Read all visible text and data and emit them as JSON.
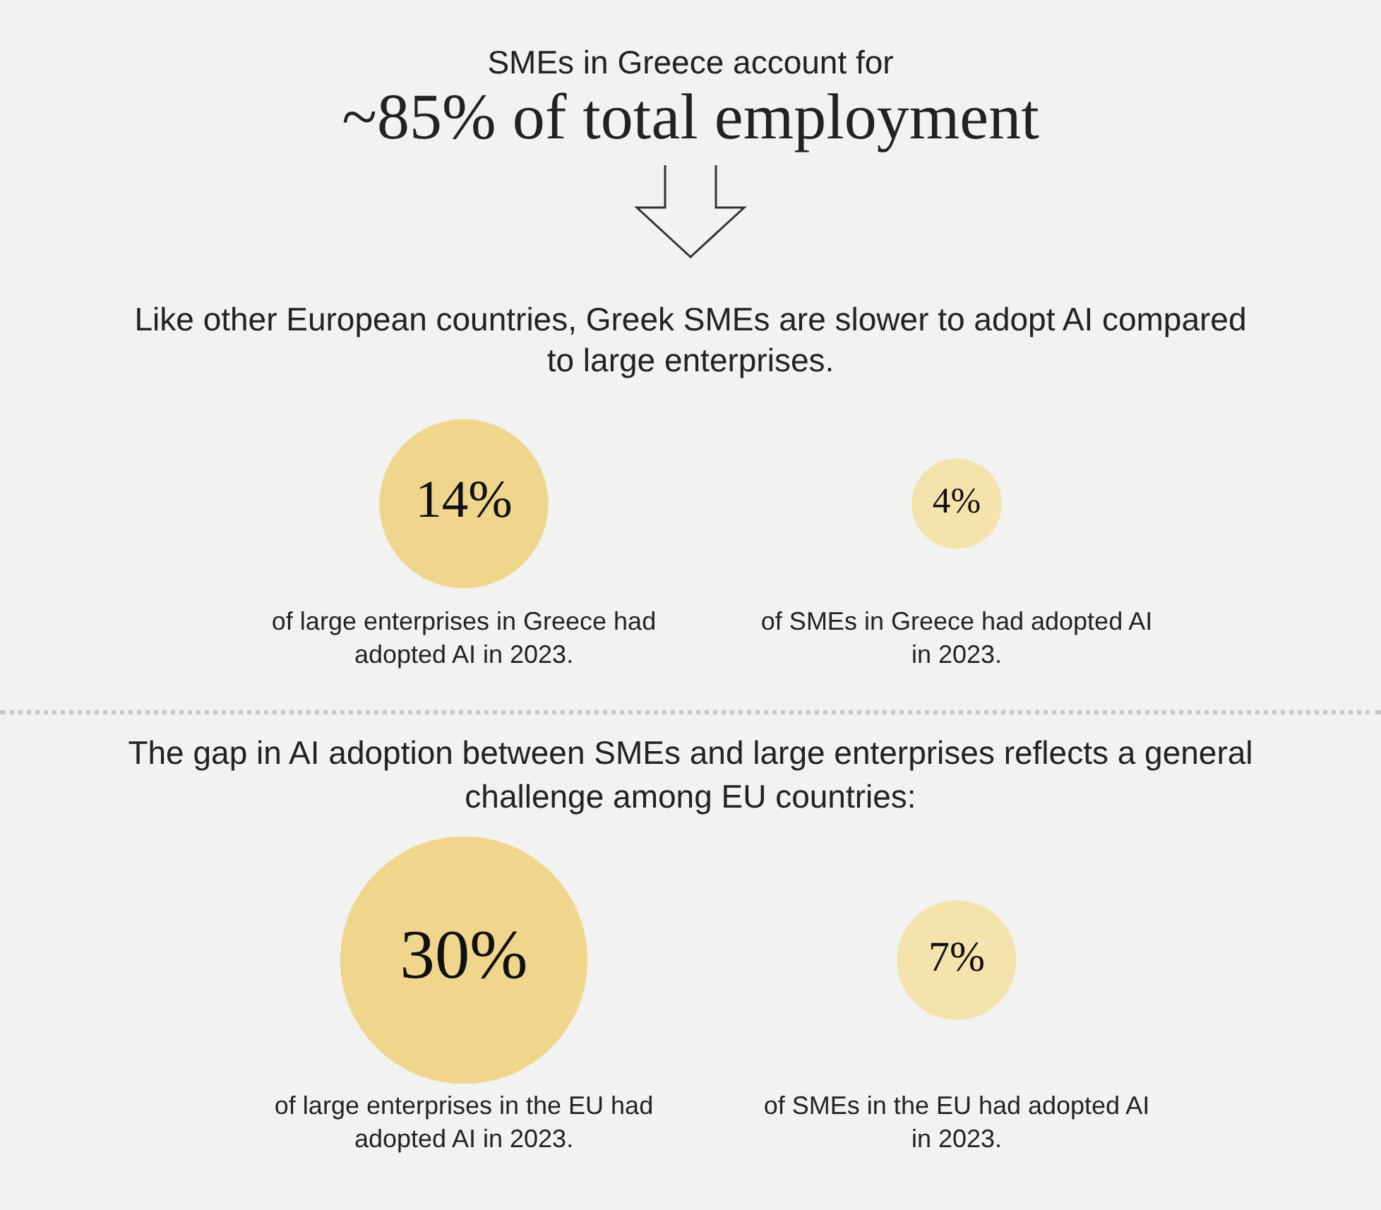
{
  "chart_data": [
    {
      "type": "other",
      "title": "SMEs in Greece account for",
      "subtitle": "~85% of total employment",
      "annotations": [
        "Like other European countries, Greek SMEs are slower to adopt AI compared to large enterprises."
      ],
      "categories": [
        "of large enterprises in Greece had adopted AI in 2023.",
        "of SMEs in Greece had adopted AI in 2023."
      ],
      "values": [
        14,
        4
      ],
      "value_labels": [
        "14%",
        "4%"
      ],
      "colors": [
        "#f0d58c",
        "#f5e3ad"
      ]
    },
    {
      "type": "other",
      "title": "The gap in AI adoption between SMEs and large enterprises reflects a general challenge among EU countries:",
      "categories": [
        "of large enterprises in the EU had adopted AI in 2023.",
        "of SMEs in the EU had adopted AI in 2023."
      ],
      "values": [
        30,
        7
      ],
      "value_labels": [
        "30%",
        "7%"
      ],
      "colors": [
        "#f0d58c",
        "#f5e3ad"
      ]
    }
  ]
}
